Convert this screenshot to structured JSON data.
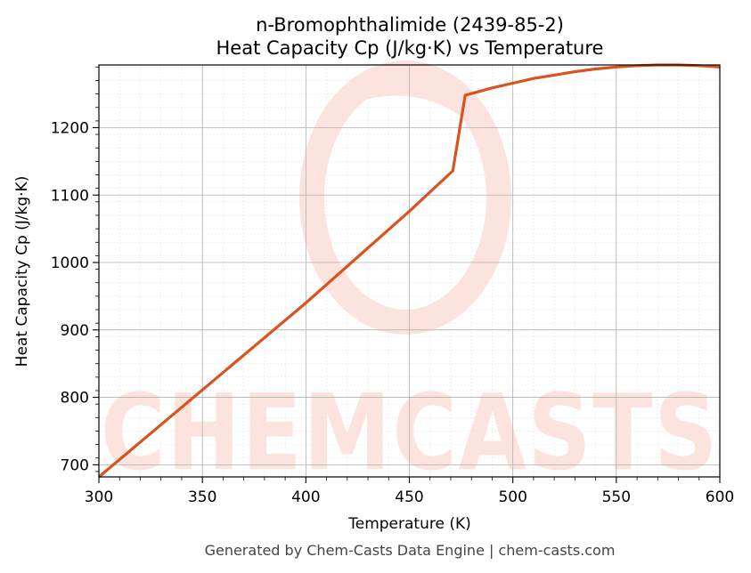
{
  "chart_data": {
    "type": "line",
    "title": "n-Bromophthalimide (2439-85-2)",
    "subtitle": "Heat Capacity Cp (J/kg·K) vs Temperature",
    "xlabel": "Temperature (K)",
    "ylabel": "Heat Capacity Cp (J/kg·K)",
    "xlim": [
      300,
      600
    ],
    "ylim": [
      682,
      1293
    ],
    "xticks": [
      "300",
      "350",
      "400",
      "450",
      "500",
      "550",
      "600"
    ],
    "yticks": [
      "700",
      "800",
      "900",
      "1000",
      "1100",
      "1200"
    ],
    "grid": true,
    "series": [
      {
        "color": "#d9531e",
        "x": [
          300,
          350,
          400,
          450,
          471,
          477,
          490,
          500,
          510,
          520,
          530,
          540,
          550,
          560,
          570,
          580,
          590,
          600
        ],
        "y": [
          682,
          811,
          940,
          1076,
          1136,
          1248,
          1259,
          1266,
          1273,
          1278,
          1283,
          1287,
          1290,
          1292,
          1293,
          1293,
          1292,
          1290
        ]
      }
    ]
  },
  "watermark": "CHEMCASTS",
  "footer": "Generated by Chem-Casts Data Engine | chem-casts.com"
}
